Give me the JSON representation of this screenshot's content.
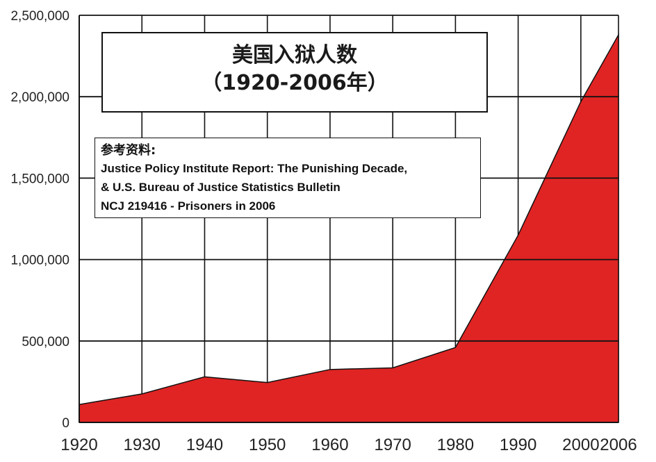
{
  "chart_data": {
    "type": "area",
    "x": [
      1920,
      1930,
      1940,
      1950,
      1960,
      1970,
      1980,
      1990,
      2000,
      2006
    ],
    "values": [
      110000,
      175000,
      280000,
      245000,
      325000,
      335000,
      460000,
      1150000,
      1970000,
      2380000
    ],
    "xlim": [
      1920,
      2006
    ],
    "ylim": [
      0,
      2500000
    ],
    "x_ticks": [
      1920,
      1930,
      1940,
      1950,
      1960,
      1970,
      1980,
      1990,
      2000,
      2006
    ],
    "y_ticks": [
      0,
      500000,
      1000000,
      1500000,
      2000000,
      2500000
    ],
    "x_tick_labels": [
      "1920",
      "1930",
      "1940",
      "1950",
      "1960",
      "1970",
      "1980",
      "1990",
      "2000",
      "2006"
    ],
    "y_tick_labels": [
      "0",
      "500,000",
      "1,000,000",
      "1,500,000",
      "2,000,000",
      "2,500,000"
    ],
    "grid": "both",
    "fill_color": "#e02424",
    "title_line1": "美国入狱人数",
    "title_line2": "（1920-2006年）",
    "source_heading": "参考资料:",
    "source_lines": [
      "Justice Policy Institute Report: The Punishing Decade,",
      "& U.S. Bureau of Justice Statistics Bulletin",
      "NCJ 219416 - Prisoners in 2006"
    ]
  }
}
